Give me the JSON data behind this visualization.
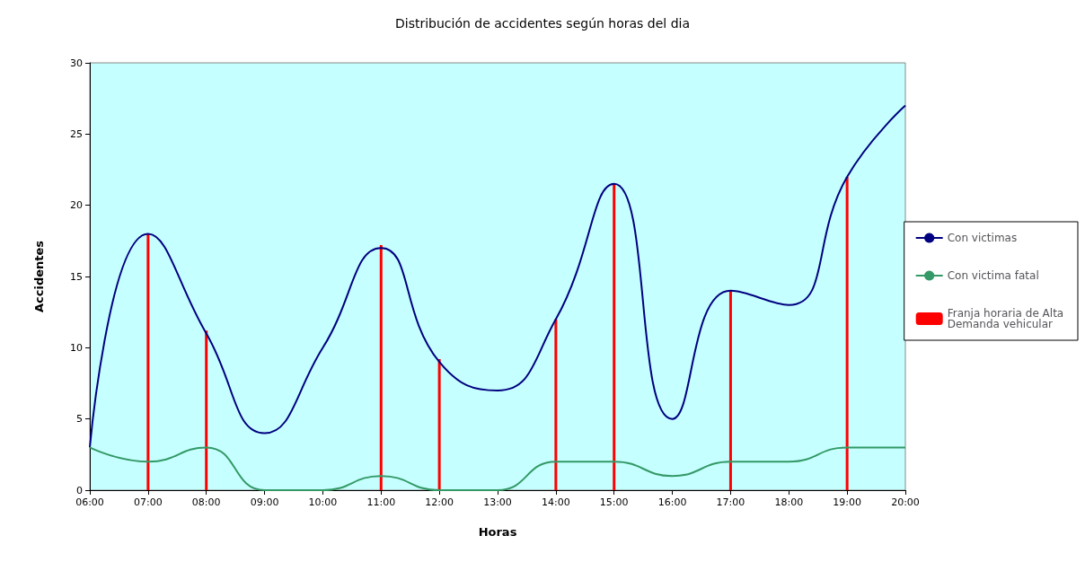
{
  "chart_data": {
    "type": "line",
    "title": "Distribución de accidentes según horas del dia",
    "xlabel": "Horas",
    "ylabel": "Accidentes",
    "x": [
      6,
      7,
      8,
      9,
      10,
      11,
      12,
      13,
      14,
      15,
      16,
      17,
      18,
      19,
      20
    ],
    "xlim": [
      6,
      20
    ],
    "xticks": [
      {
        "value": 6,
        "label": "06:00"
      },
      {
        "value": 7,
        "label": "07:00"
      },
      {
        "value": 8,
        "label": "08:00"
      },
      {
        "value": 9,
        "label": "09:00"
      },
      {
        "value": 10,
        "label": "10:00"
      },
      {
        "value": 11,
        "label": "11:00"
      },
      {
        "value": 12,
        "label": "12:00"
      },
      {
        "value": 13,
        "label": "13:00"
      },
      {
        "value": 14,
        "label": "14:00"
      },
      {
        "value": 15,
        "label": "15:00"
      },
      {
        "value": 16,
        "label": "16:00"
      },
      {
        "value": 17,
        "label": "17:00"
      },
      {
        "value": 18,
        "label": "18:00"
      },
      {
        "value": 19,
        "label": "19:00"
      },
      {
        "value": 20,
        "label": "20:00"
      }
    ],
    "ylim": [
      0,
      30
    ],
    "yticks": [
      0,
      5,
      10,
      15,
      20,
      25,
      30
    ],
    "grid": false,
    "legend": "right",
    "marker": "none",
    "series": [
      {
        "name": "Con victimas",
        "color": "#000080",
        "values": [
          3,
          18,
          11,
          4,
          10,
          17,
          9,
          7,
          12,
          21.5,
          5,
          14,
          13,
          22,
          27
        ]
      },
      {
        "name": "Con victima fatal",
        "color": "#339966",
        "values": [
          3,
          2,
          3,
          0,
          0,
          1,
          0,
          0,
          2,
          2,
          1,
          2,
          2,
          3,
          3
        ]
      },
      {
        "name": "Franja horaria de Alta Demanda vehicular",
        "type": "bar",
        "color": "#ff0000",
        "x": [
          7,
          8,
          11,
          12,
          14,
          15,
          17,
          19
        ],
        "values": [
          18,
          11.2,
          17.2,
          9.2,
          12,
          21.5,
          14,
          22
        ]
      }
    ]
  }
}
